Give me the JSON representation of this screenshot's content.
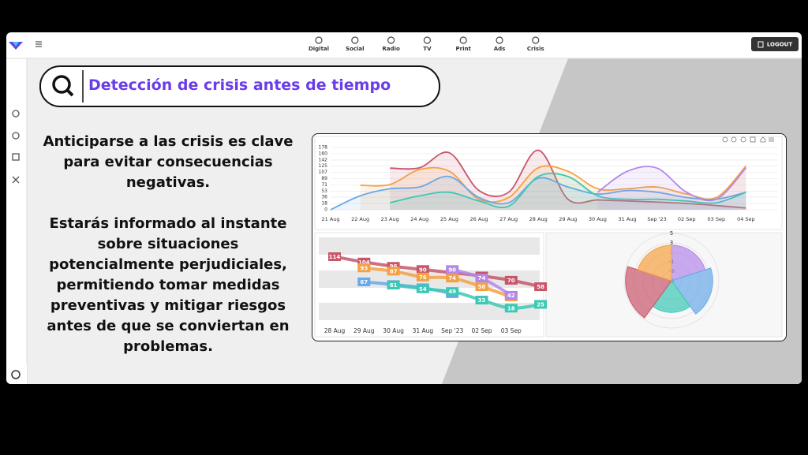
{
  "nav": {
    "items": [
      "Digital",
      "Social",
      "Radio",
      "TV",
      "Print",
      "Ads",
      "Crisis"
    ],
    "logout": "LOGOUT"
  },
  "search": {
    "title": "Detección de crisis antes de tiempo"
  },
  "text": {
    "paragraphs": [
      "Anticiparse a las crisis es clave para evitar consecuencias negativas.",
      "Estarás informado al instante sobre situaciones potencialmente perjudiciales, permitiendo tomar medidas preventivas y mitigar riesgos antes de que se conviertan en problemas."
    ]
  },
  "chart_data": [
    {
      "type": "area",
      "categories": [
        "21 Aug",
        "22 Aug",
        "23 Aug",
        "24 Aug",
        "25 Aug",
        "26 Aug",
        "27 Aug",
        "28 Aug",
        "29 Aug",
        "30 Aug",
        "31 Aug",
        "Sep '23",
        "02 Sep",
        "03 Sep",
        "04 Sep"
      ],
      "ylim": [
        0,
        178
      ],
      "yticks": [
        0,
        18,
        36,
        53,
        71,
        89,
        107,
        125,
        142,
        160,
        178
      ],
      "grid": true,
      "series": [
        {
          "color": "#c8566a",
          "values": [
            null,
            null,
            119,
            120,
            163,
            55,
            50,
            170,
            30,
            28,
            25,
            22,
            18,
            12,
            5
          ]
        },
        {
          "color": "#f5a142",
          "values": [
            null,
            70,
            72,
            115,
            110,
            30,
            35,
            120,
            110,
            60,
            60,
            65,
            45,
            35,
            125
          ]
        },
        {
          "color": "#6aa8e8",
          "values": [
            0,
            40,
            60,
            65,
            95,
            35,
            20,
            90,
            65,
            45,
            55,
            50,
            35,
            30,
            50
          ]
        },
        {
          "color": "#3cc8b4",
          "values": [
            null,
            null,
            20,
            40,
            50,
            25,
            10,
            95,
            95,
            40,
            30,
            30,
            25,
            20,
            50
          ]
        },
        {
          "color": "#b487e8",
          "values": [
            null,
            null,
            null,
            null,
            null,
            null,
            null,
            null,
            null,
            50,
            110,
            119,
            50,
            30,
            120
          ]
        }
      ]
    },
    {
      "type": "bump",
      "categories": [
        "28 Aug",
        "29 Aug",
        "30 Aug",
        "31 Aug",
        "Sep '23",
        "02 Sep",
        "03 Sep",
        null
      ],
      "ylim": [
        0,
        150
      ],
      "series": [
        {
          "color": "#c8566a",
          "values": [
            114,
            104,
            96,
            90,
            84,
            78,
            70,
            58
          ]
        },
        {
          "color": "#f5a142",
          "values": [
            null,
            93,
            87,
            76,
            74,
            58,
            39,
            null
          ]
        },
        {
          "color": "#6aa8e8",
          "values": [
            null,
            67,
            62,
            56,
            45,
            null,
            null,
            null
          ]
        },
        {
          "color": "#b487e8",
          "values": [
            null,
            null,
            null,
            null,
            90,
            74,
            42,
            null
          ]
        },
        {
          "color": "#3cc8b4",
          "values": [
            null,
            null,
            61,
            54,
            49,
            33,
            18,
            25
          ]
        }
      ]
    },
    {
      "type": "polar",
      "rlim": [
        -5,
        5
      ],
      "rticks": [
        -5,
        -3,
        -1,
        1,
        3,
        5
      ],
      "values": [
        2.5,
        3.7,
        1.7,
        4.7,
        2.5
      ],
      "colors": [
        "#b487e8",
        "#6aa8e8",
        "#3cc8b4",
        "#c8566a",
        "#f5a142"
      ]
    }
  ]
}
